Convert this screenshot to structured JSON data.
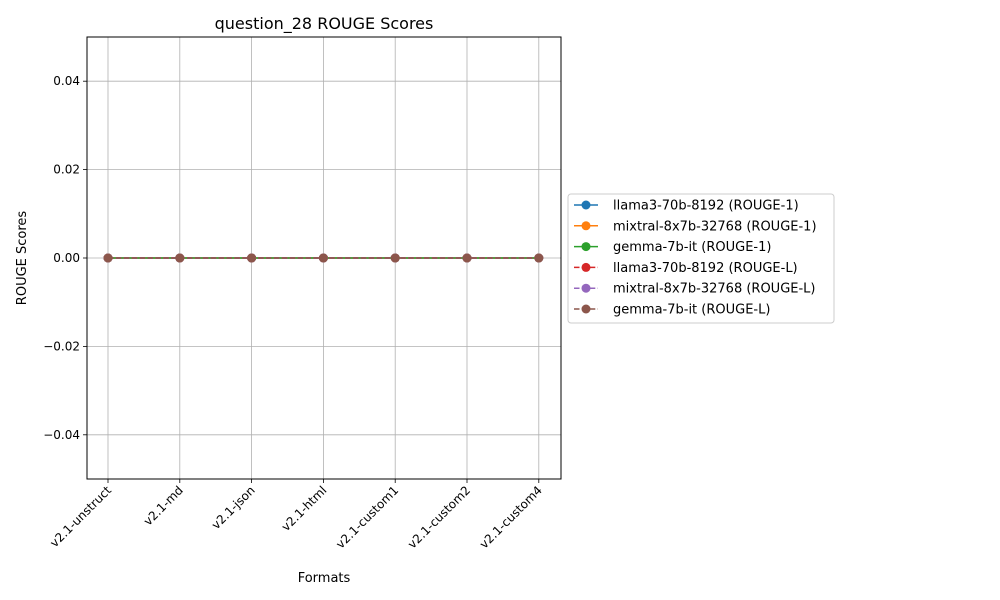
{
  "chart_data": {
    "type": "line",
    "title": "question_28 ROUGE Scores",
    "xlabel": "Formats",
    "ylabel": "ROUGE Scores",
    "categories": [
      "v2.1-unstruct",
      "v2.1-md",
      "v2.1-json",
      "v2.1-html",
      "v2.1-custom1",
      "v2.1-custom2",
      "v2.1-custom4"
    ],
    "ylim": [
      -0.05,
      0.05
    ],
    "yticks": [
      -0.04,
      -0.02,
      0.0,
      0.02,
      0.04
    ],
    "ytick_labels": [
      "−0.04",
      "−0.02",
      "0.00",
      "0.02",
      "0.04"
    ],
    "grid": true,
    "legend_position": "outside-right",
    "series": [
      {
        "name": "llama3-70b-8192 (ROUGE-1)",
        "color": "#1f77b4",
        "style": "solid",
        "marker": "circle",
        "values": [
          0,
          0,
          0,
          0,
          0,
          0,
          0
        ]
      },
      {
        "name": "mixtral-8x7b-32768 (ROUGE-1)",
        "color": "#ff7f0e",
        "style": "solid",
        "marker": "circle",
        "values": [
          0,
          0,
          0,
          0,
          0,
          0,
          0
        ]
      },
      {
        "name": "gemma-7b-it (ROUGE-1)",
        "color": "#2ca02c",
        "style": "solid",
        "marker": "circle",
        "values": [
          0,
          0,
          0,
          0,
          0,
          0,
          0
        ]
      },
      {
        "name": "llama3-70b-8192 (ROUGE-L)",
        "color": "#d62728",
        "style": "dashed",
        "marker": "circle",
        "values": [
          0,
          0,
          0,
          0,
          0,
          0,
          0
        ]
      },
      {
        "name": "mixtral-8x7b-32768 (ROUGE-L)",
        "color": "#9467bd",
        "style": "dashed",
        "marker": "circle",
        "values": [
          0,
          0,
          0,
          0,
          0,
          0,
          0
        ]
      },
      {
        "name": "gemma-7b-it (ROUGE-L)",
        "color": "#8c564b",
        "style": "dashed",
        "marker": "circle",
        "values": [
          0,
          0,
          0,
          0,
          0,
          0,
          0
        ]
      }
    ]
  }
}
